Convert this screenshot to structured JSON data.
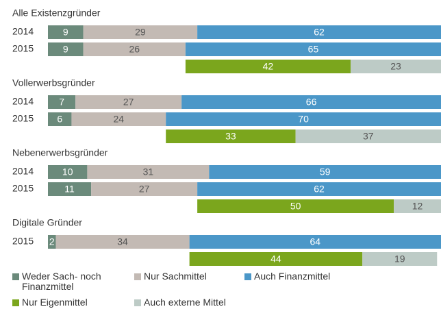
{
  "chart_data": {
    "type": "stacked-bar",
    "orientation": "horizontal",
    "xlim": [
      0,
      100
    ],
    "series": [
      {
        "name": "Weder Sach- noch Finanzmittel",
        "color": "#6b8a7b"
      },
      {
        "name": "Nur Sachmittel",
        "color": "#c3bab4"
      },
      {
        "name": "Auch Finanzmittel",
        "color": "#4b97c8"
      },
      {
        "name": "Nur Eigenmittel",
        "color": "#7ba61d"
      },
      {
        "name": "Auch externe Mittel",
        "color": "#bdcbc6"
      }
    ],
    "groups": [
      {
        "title": "Alle Existenzgründer",
        "categories": [
          "2014",
          "2015"
        ],
        "values": [
          [
            9,
            29,
            62
          ],
          [
            9,
            26,
            65
          ]
        ],
        "split": [
          42,
          23
        ]
      },
      {
        "title": "Vollerwerbsgründer",
        "categories": [
          "2014",
          "2015"
        ],
        "values": [
          [
            7,
            27,
            66
          ],
          [
            6,
            24,
            70
          ]
        ],
        "split": [
          33,
          37
        ]
      },
      {
        "title": "Nebenerwerbsgründer",
        "categories": [
          "2014",
          "2015"
        ],
        "values": [
          [
            10,
            31,
            59
          ],
          [
            11,
            27,
            62
          ]
        ],
        "split": [
          50,
          12
        ]
      },
      {
        "title": "Digitale Gründer",
        "categories": [
          "2015"
        ],
        "values": [
          [
            2,
            34,
            64
          ]
        ],
        "split": [
          44,
          19
        ]
      }
    ]
  }
}
